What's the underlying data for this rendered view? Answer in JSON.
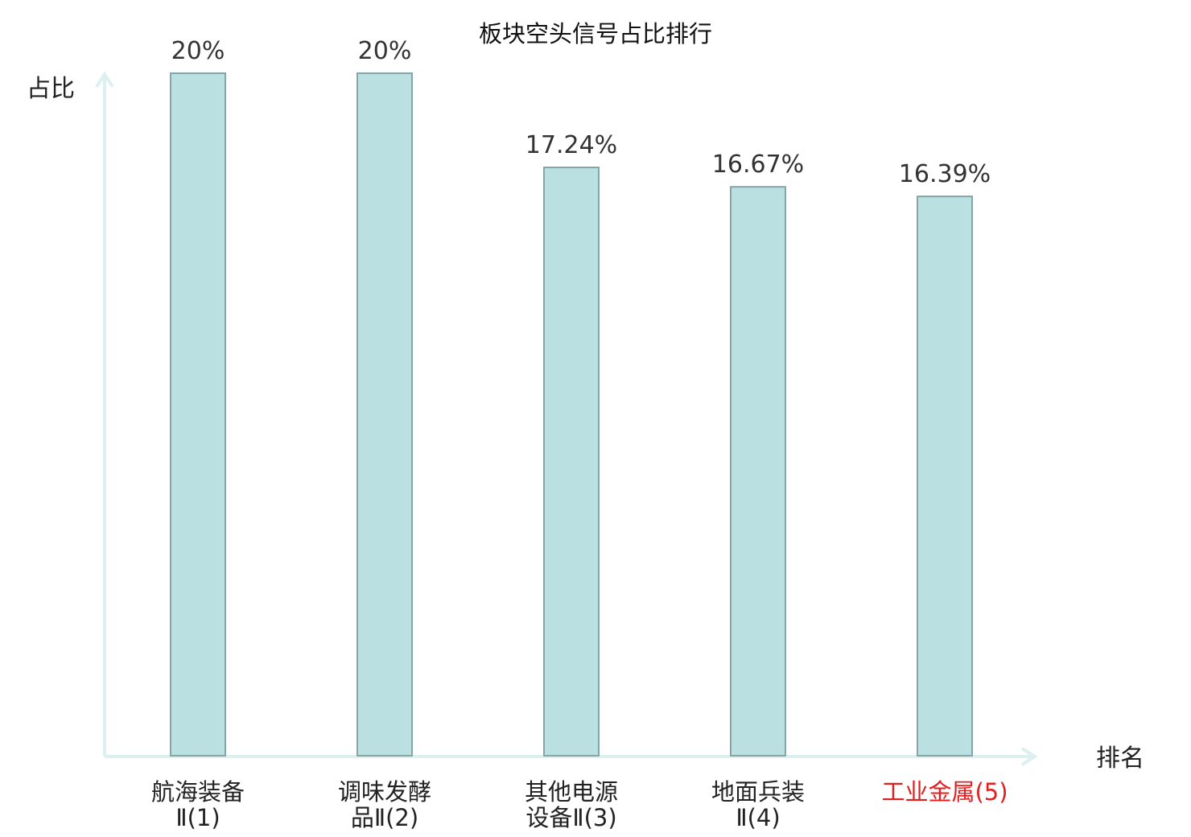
{
  "chart_data": {
    "type": "bar",
    "title": "板块空头信号占比排行",
    "ylabel": "占比",
    "xlabel": "排名",
    "categories": [
      [
        "航海装备",
        "Ⅱ(1)"
      ],
      [
        "调味发酵",
        "品Ⅱ(2)"
      ],
      [
        "其他电源",
        "设备Ⅱ(3)"
      ],
      [
        "地面兵装",
        "Ⅱ(4)"
      ],
      [
        "工业金属(5)"
      ]
    ],
    "values": [
      20,
      20,
      17.24,
      16.67,
      16.39
    ],
    "value_labels": [
      "20%",
      "20%",
      "17.24%",
      "16.67%",
      "16.39%"
    ],
    "ylim": [
      0,
      20
    ],
    "grid": false,
    "highlight_index": 4,
    "colors": {
      "bar_fill": "#bbe0e2",
      "bar_stroke": "#86a5a6",
      "axis": "#dcf1ef",
      "highlight": "#e02020"
    }
  }
}
